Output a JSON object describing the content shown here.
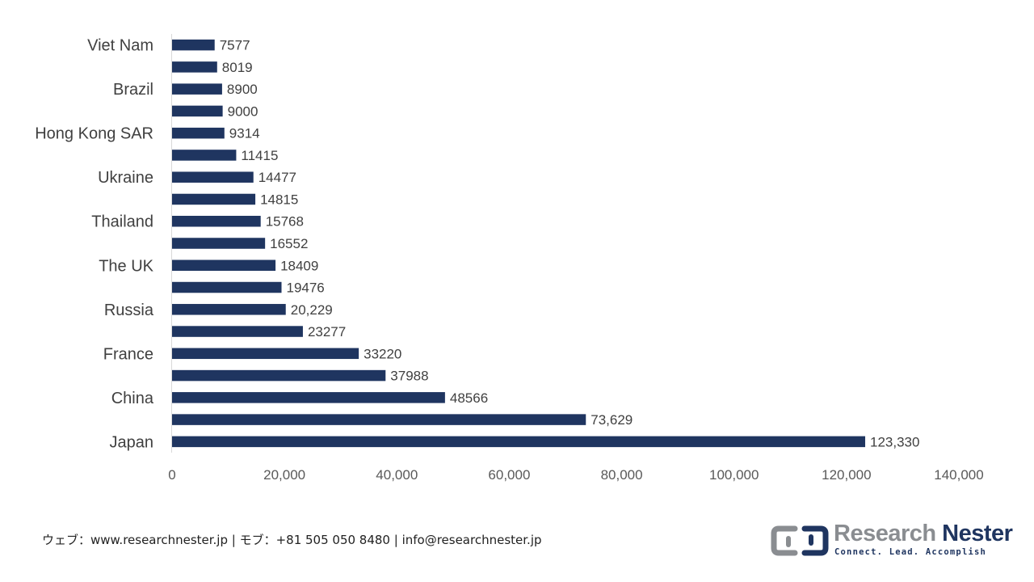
{
  "chart_data": {
    "type": "bar",
    "orientation": "horizontal",
    "categories": [
      "Viet Nam",
      "",
      "Brazil",
      "",
      "Hong Kong SAR",
      "",
      "Ukraine",
      "",
      "Thailand",
      "",
      "The UK",
      "",
      "Russia",
      "",
      "France",
      "",
      "China",
      "",
      "Japan"
    ],
    "values": [
      7577,
      8019,
      8900,
      9000,
      9314,
      11415,
      14477,
      14815,
      15768,
      16552,
      18409,
      19476,
      20229,
      23277,
      33220,
      37988,
      48566,
      73629,
      123330
    ],
    "value_labels": [
      "7577",
      "8019",
      "8900",
      "9000",
      "9314",
      "11415",
      "14477",
      "14815",
      "15768",
      "16552",
      "18409",
      "19476",
      "20,229",
      "23277",
      "33220",
      "37988",
      "48566",
      "73,629",
      "123,330"
    ],
    "xlim": [
      0,
      140000
    ],
    "x_ticks": [
      0,
      20000,
      40000,
      60000,
      80000,
      100000,
      120000,
      140000
    ],
    "x_tick_labels": [
      "0",
      "20,000",
      "40,000",
      "60,000",
      "80,000",
      "100,000",
      "120,000",
      "140,000"
    ],
    "bar_color": "#1f3560",
    "grid": false,
    "legend": "none"
  },
  "footer": {
    "contact": "ウェブ：www.researchnester.jp | モブ：+81 505 050 8480 | info@researchnester.jp"
  },
  "logo": {
    "word1": "Research",
    "word2": "Nester",
    "tagline": "Connect. Lead. Accomplish",
    "colors": {
      "gray": "#8a8d91",
      "navy": "#1f3560"
    }
  }
}
